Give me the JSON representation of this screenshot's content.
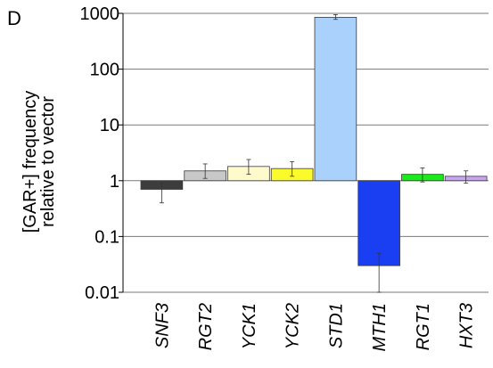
{
  "panel_label": "D",
  "chart_data": {
    "type": "bar",
    "scale": "log",
    "baseline": 1,
    "ylim": [
      0.01,
      1000
    ],
    "yticks": [
      {
        "value": 1000,
        "label": "1000"
      },
      {
        "value": 100,
        "label": "100"
      },
      {
        "value": 10,
        "label": "10"
      },
      {
        "value": 1,
        "label": "1"
      },
      {
        "value": 0.1,
        "label": "0.1"
      },
      {
        "value": 0.01,
        "label": "0.01"
      }
    ],
    "ylabel_line1": "[GAR+] frequency",
    "ylabel_line2": "relative to vector",
    "xlabel": "",
    "grid": "horizontal",
    "categories": [
      "SNF3",
      "RGT2",
      "YCK1",
      "YCK2",
      "STD1",
      "MTH1",
      "RGT1",
      "HXT3"
    ],
    "values": [
      0.7,
      1.5,
      1.8,
      1.65,
      850,
      0.03,
      1.3,
      1.2
    ],
    "errors_low": [
      0.4,
      1.1,
      1.3,
      1.2,
      780,
      0.01,
      0.95,
      0.9
    ],
    "errors_high": [
      0.9,
      2.0,
      2.4,
      2.2,
      950,
      0.05,
      1.7,
      1.5
    ],
    "colors": [
      "#3d3d3d",
      "#c8c8c8",
      "#fffacb",
      "#fbfb2c",
      "#a9d1fb",
      "#1a3ff2",
      "#1aeb1a",
      "#c8a5f2"
    ]
  }
}
